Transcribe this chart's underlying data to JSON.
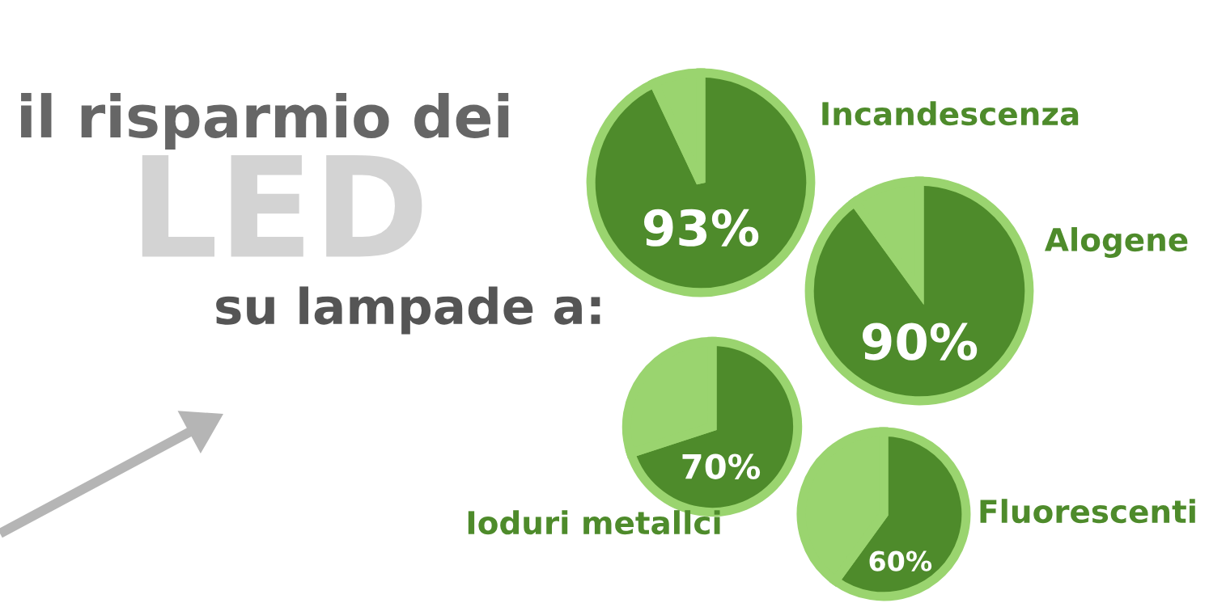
{
  "chart_data": [
    {
      "type": "other",
      "title": "il risparmio dei",
      "subtitle": "LED",
      "annotations": [
        "su lampade a:"
      ]
    },
    {
      "type": "pie",
      "title": "Incandescenza",
      "categories": [
        null,
        null
      ],
      "values": [
        93,
        7
      ],
      "colors": [
        "#4e8b2b",
        "#9ad46f"
      ],
      "value_labels": [
        "93%",
        null
      ]
    },
    {
      "type": "pie",
      "title": "Alogene",
      "categories": [
        null,
        null
      ],
      "values": [
        90,
        10
      ],
      "colors": [
        "#4e8b2b",
        "#9ad46f"
      ],
      "value_labels": [
        "90%",
        null
      ]
    },
    {
      "type": "pie",
      "title": "Ioduri metallci",
      "categories": [
        null,
        null
      ],
      "values": [
        70,
        30
      ],
      "colors": [
        "#4e8b2b",
        "#9ad46f"
      ],
      "value_labels": [
        "70%",
        null
      ]
    },
    {
      "type": "pie",
      "title": "Fluorescenti",
      "categories": [
        null,
        null
      ],
      "values": [
        60,
        40
      ],
      "colors": [
        "#4e8b2b",
        "#9ad46f"
      ],
      "value_labels": [
        "60%",
        null
      ]
    }
  ]
}
